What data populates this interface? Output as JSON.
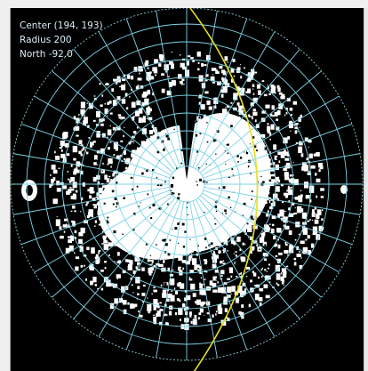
{
  "readout": {
    "center": "Center (194, 193)",
    "radius": "Radius 200",
    "north": "North -92.0"
  },
  "colors": {
    "background": "#000000",
    "grid": "#7fd4e6",
    "horizon": "#e8e020",
    "sky": "#ffffff",
    "outer_dashed": "#8fd0de"
  }
}
